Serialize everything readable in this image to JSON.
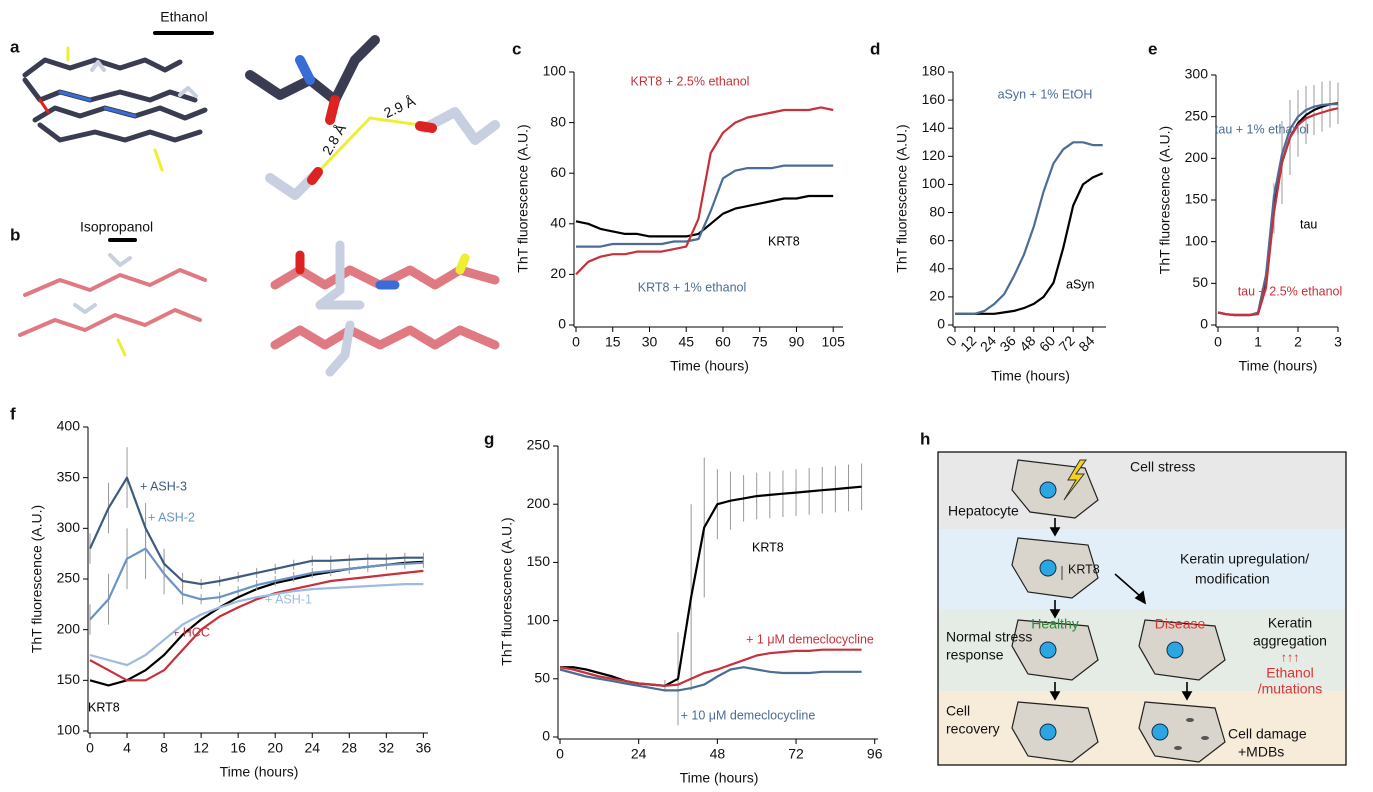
{
  "panels": {
    "a": "a",
    "b": "b",
    "h": "h"
  },
  "structures": {
    "ethanol": "Ethanol",
    "d1": "2.9 Å",
    "d2": "2.8 Å",
    "isopropanol": "Isopropanol"
  },
  "diagram": {
    "stress": "Cell stress",
    "hepatocyte": "Hepatocyte",
    "krt8": "KRT8",
    "upreg": [
      "Keratin upregulation/",
      "modification"
    ],
    "healthy": "Healthy",
    "disease": "Disease",
    "aggregation": [
      "Keratin",
      "aggregation"
    ],
    "arrows": "↑↑↑",
    "normal": [
      "Normal stress",
      "response"
    ],
    "ethanol": [
      "Ethanol",
      "/mutations"
    ],
    "recovery": [
      "Cell",
      "recovery"
    ],
    "damage": [
      "Cell damage",
      "+MDBs"
    ]
  },
  "chart_data": [
    {
      "type": "line",
      "panel": "c",
      "xlabel": "Time (hours)",
      "ylabel": "ThT fluorescence (A.U.)",
      "xlim": [
        0,
        109
      ],
      "xticks": [
        0,
        15,
        30,
        45,
        60,
        75,
        90,
        105
      ],
      "ylim": [
        0,
        100
      ],
      "yticks": [
        0,
        20,
        40,
        60,
        80,
        100
      ],
      "x": [
        0,
        5,
        10,
        15,
        20,
        25,
        30,
        35,
        40,
        45,
        50,
        55,
        60,
        65,
        70,
        75,
        80,
        85,
        90,
        95,
        100,
        105
      ],
      "series": [
        {
          "name": "KRT8",
          "color": "#000000",
          "values": [
            41,
            40,
            38,
            37,
            36,
            36,
            35,
            35,
            35,
            35,
            36,
            40,
            44,
            46,
            47,
            48,
            49,
            50,
            50,
            51,
            51,
            51
          ]
        },
        {
          "name": "KRT8 + 1% ethanol",
          "color": "#4a6d96",
          "values": [
            31,
            31,
            31,
            32,
            32,
            32,
            32,
            32,
            33,
            33,
            34,
            45,
            58,
            61,
            62,
            62,
            62,
            63,
            63,
            63,
            63,
            63
          ]
        },
        {
          "name": "KRT8 + 2.5% ethanol",
          "color": "#c8303a",
          "values": [
            20,
            25,
            27,
            28,
            28,
            29,
            29,
            29,
            30,
            31,
            42,
            68,
            76,
            80,
            82,
            83,
            84,
            85,
            85,
            85,
            86,
            85
          ]
        }
      ]
    },
    {
      "type": "line",
      "panel": "d",
      "xlabel": "Time (hours)",
      "ylabel": "ThT fluorescence (A.U.)",
      "xlim": [
        0,
        92
      ],
      "xticks": [
        0,
        12,
        24,
        36,
        48,
        60,
        72,
        84
      ],
      "ylim": [
        0,
        180
      ],
      "yticks": [
        0,
        20,
        40,
        60,
        80,
        100,
        120,
        140,
        160,
        180
      ],
      "x": [
        0,
        6,
        12,
        18,
        24,
        30,
        36,
        42,
        48,
        54,
        60,
        66,
        72,
        78,
        84,
        90
      ],
      "series": [
        {
          "name": "aSyn",
          "color": "#000000",
          "values": [
            8,
            8,
            8,
            8,
            8,
            9,
            10,
            12,
            15,
            20,
            30,
            55,
            85,
            100,
            105,
            108
          ]
        },
        {
          "name": "aSyn + 1% EtOH",
          "color": "#4a6d96",
          "values": [
            8,
            8,
            8,
            10,
            15,
            22,
            35,
            50,
            70,
            95,
            115,
            125,
            130,
            130,
            128,
            128
          ]
        }
      ]
    },
    {
      "type": "line",
      "panel": "e",
      "xlabel": "Time (hours)",
      "ylabel": "ThT fluorescence (A.U.)",
      "xlim": [
        0,
        3
      ],
      "xticks": [
        0,
        1,
        2,
        3
      ],
      "ylim": [
        0,
        300
      ],
      "yticks": [
        0,
        50,
        100,
        150,
        200,
        250,
        300
      ],
      "x": [
        0,
        0.2,
        0.4,
        0.6,
        0.8,
        1,
        1.2,
        1.4,
        1.6,
        1.8,
        2,
        2.2,
        2.4,
        2.6,
        2.8,
        3
      ],
      "series": [
        {
          "name": "tau",
          "color": "#000000",
          "values": [
            15,
            13,
            12,
            12,
            12,
            14,
            50,
            140,
            195,
            225,
            242,
            252,
            258,
            262,
            265,
            266
          ],
          "errors": [
            0,
            0,
            0,
            0,
            0,
            0,
            10,
            30,
            50,
            45,
            40,
            35,
            30,
            30,
            28,
            25
          ]
        },
        {
          "name": "tau + 1% ethanol",
          "color": "#4a6d96",
          "values": [
            15,
            13,
            12,
            12,
            12,
            15,
            60,
            155,
            205,
            235,
            250,
            258,
            262,
            264,
            265,
            265
          ]
        },
        {
          "name": "tau + 2.5% ethanol",
          "color": "#c8303a",
          "values": [
            15,
            13,
            12,
            12,
            12,
            13,
            45,
            135,
            195,
            225,
            240,
            248,
            252,
            255,
            258,
            260
          ]
        }
      ]
    },
    {
      "type": "line",
      "panel": "f",
      "xlabel": "Time (hours)",
      "ylabel": "ThT fluorescence (A.U.)",
      "xlim": [
        0,
        36.5
      ],
      "xticks": [
        0,
        4,
        8,
        12,
        16,
        20,
        24,
        28,
        32,
        36
      ],
      "ylim": [
        100,
        400
      ],
      "yticks": [
        100,
        150,
        200,
        250,
        300,
        350,
        400
      ],
      "x": [
        0,
        2,
        4,
        6,
        8,
        10,
        12,
        14,
        16,
        18,
        20,
        22,
        24,
        26,
        28,
        30,
        32,
        34,
        36
      ],
      "series": [
        {
          "name": "KRT8",
          "color": "#000000",
          "values": [
            150,
            145,
            150,
            160,
            175,
            195,
            210,
            222,
            232,
            240,
            246,
            250,
            254,
            257,
            260,
            262,
            264,
            266,
            267
          ]
        },
        {
          "name": "+ HCC",
          "color": "#c8303a",
          "values": [
            170,
            160,
            150,
            150,
            160,
            180,
            200,
            213,
            222,
            230,
            236,
            240,
            244,
            248,
            250,
            252,
            254,
            256,
            258
          ]
        },
        {
          "name": "+ ASH-1",
          "color": "#9dbbe0",
          "values": [
            175,
            170,
            165,
            175,
            190,
            205,
            215,
            222,
            228,
            232,
            235,
            238,
            240,
            241,
            242,
            243,
            244,
            245,
            245
          ]
        },
        {
          "name": "+ ASH-2",
          "color": "#6a93c5",
          "values": [
            210,
            230,
            270,
            280,
            255,
            235,
            230,
            232,
            238,
            244,
            248,
            252,
            256,
            258,
            260,
            262,
            264,
            265,
            266
          ],
          "errors": [
            15,
            25,
            30,
            30,
            20,
            10,
            5,
            5,
            5,
            5,
            5,
            5,
            5,
            5,
            5,
            5,
            5,
            5,
            5
          ]
        },
        {
          "name": "+ ASH-3",
          "color": "#3d5a80",
          "values": [
            280,
            320,
            350,
            300,
            265,
            248,
            245,
            248,
            252,
            256,
            260,
            264,
            268,
            268,
            269,
            270,
            270,
            271,
            271
          ],
          "errors": [
            15,
            25,
            30,
            25,
            15,
            8,
            5,
            5,
            5,
            5,
            5,
            5,
            5,
            5,
            5,
            5,
            5,
            5,
            5
          ]
        }
      ]
    },
    {
      "type": "line",
      "panel": "g",
      "xlabel": "Time (hours)",
      "ylabel": "ThT fluorescence (A.U.)",
      "xlim": [
        0,
        97
      ],
      "xticks": [
        0,
        24,
        48,
        72,
        96
      ],
      "ylim": [
        0,
        250
      ],
      "yticks": [
        0,
        50,
        100,
        150,
        200,
        250
      ],
      "x": [
        0,
        4,
        8,
        12,
        16,
        20,
        24,
        28,
        32,
        36,
        40,
        44,
        48,
        52,
        56,
        60,
        64,
        68,
        72,
        76,
        80,
        84,
        88,
        92
      ],
      "series": [
        {
          "name": "KRT8",
          "color": "#000000",
          "values": [
            60,
            60,
            58,
            55,
            52,
            48,
            46,
            45,
            44,
            50,
            120,
            180,
            200,
            203,
            205,
            207,
            208,
            209,
            210,
            211,
            212,
            213,
            214,
            215
          ],
          "errors": [
            0,
            0,
            0,
            0,
            0,
            0,
            0,
            0,
            5,
            40,
            80,
            60,
            30,
            25,
            20,
            20,
            20,
            20,
            20,
            20,
            20,
            20,
            20,
            20
          ]
        },
        {
          "name": "+ 1 μM demeclocycline",
          "color": "#c8303a",
          "values": [
            60,
            58,
            55,
            52,
            50,
            48,
            46,
            45,
            44,
            45,
            50,
            55,
            58,
            62,
            66,
            70,
            72,
            73,
            74,
            74,
            75,
            75,
            75,
            75
          ]
        },
        {
          "name": "+ 10 μM demeclocycline",
          "color": "#4a6d96",
          "values": [
            58,
            55,
            52,
            50,
            48,
            46,
            44,
            42,
            40,
            40,
            42,
            45,
            52,
            58,
            60,
            58,
            56,
            55,
            55,
            55,
            56,
            56,
            56,
            56
          ]
        }
      ]
    }
  ]
}
